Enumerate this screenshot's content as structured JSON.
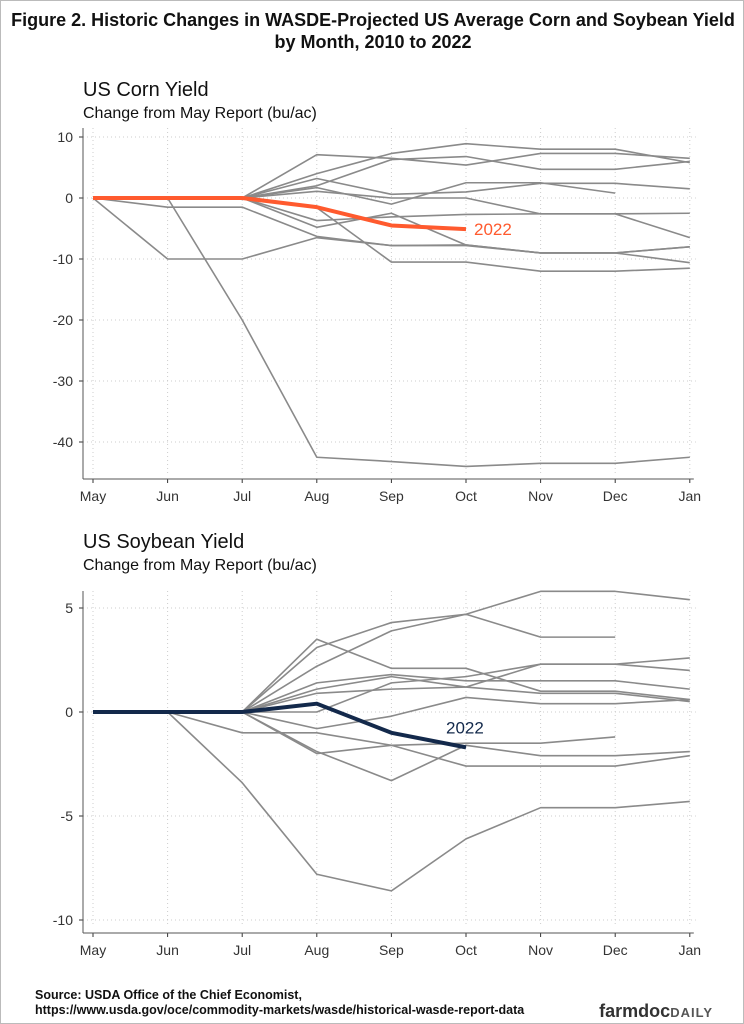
{
  "title": "Figure 2. Historic Changes in WASDE-Projected US Average Corn and Soybean Yield by Month, 2010 to 2022",
  "source_line1": "Source: USDA Office of the Chief Economist,",
  "source_line2": "https://www.usda.gov/oce/commodity-markets/wasde/historical-wasde-report-data",
  "logo": "farmdocDAILY",
  "chart_data": [
    {
      "type": "line",
      "title": "US Corn Yield",
      "subtitle": "Change from May Report (bu/ac)",
      "categories": [
        "May",
        "Jun",
        "Jul",
        "Aug",
        "Sep",
        "Oct",
        "Nov",
        "Dec",
        "Jan"
      ],
      "yticks": [
        10,
        0,
        -10,
        -20,
        -30,
        -40
      ],
      "ylim": [
        -44,
        10
      ],
      "grid": true,
      "highlight_color": "#ff5a2e",
      "history_color": "#8a8a8a",
      "series": [
        {
          "values": [
            0,
            0,
            0,
            7.1,
            6.5,
            5.4,
            7.3,
            7.3,
            6.5
          ]
        },
        {
          "values": [
            0,
            0,
            0,
            4.0,
            7.3,
            8.9,
            8.0,
            8.0,
            5.8
          ]
        },
        {
          "values": [
            0,
            0,
            0,
            2.0,
            6.3,
            6.8,
            4.7,
            4.7,
            6.0
          ]
        },
        {
          "values": [
            0,
            0,
            0,
            1.7,
            -1.0,
            2.5,
            2.5,
            0.8,
            null
          ]
        },
        {
          "values": [
            0,
            0,
            0,
            3.2,
            0.6,
            1.0,
            2.4,
            2.4,
            1.5
          ]
        },
        {
          "values": [
            0,
            0,
            0,
            1.1,
            0,
            0,
            -2.6,
            -2.6,
            -6.5
          ]
        },
        {
          "values": [
            0,
            0,
            0,
            -3.7,
            -3.1,
            -2.7,
            -2.6,
            -2.6,
            -2.5
          ]
        },
        {
          "values": [
            0,
            0,
            0,
            -4.8,
            -2.5,
            -7.7,
            -9.0,
            -9.0,
            -10.6
          ]
        },
        {
          "values": [
            0,
            -1.5,
            -1.5,
            -6.3,
            -7.8,
            -7.7,
            -9.0,
            -9.0,
            -8.0
          ]
        },
        {
          "values": [
            0,
            0,
            0,
            -1.6,
            -10.5,
            -10.5,
            -12.0,
            -12.0,
            -11.5
          ]
        },
        {
          "values": [
            0,
            -10,
            -10,
            -6.5,
            -7.8,
            -7.8,
            -9.0,
            -9.0,
            -8.0
          ]
        },
        {
          "values": [
            0,
            0,
            -20,
            -42.5,
            -43.2,
            -44,
            -43.5,
            -43.5,
            -42.5
          ]
        },
        {
          "name": "2022",
          "highlight": true,
          "values": [
            0,
            0,
            0,
            -1.5,
            -4.5,
            -5.1,
            null,
            null,
            null
          ]
        }
      ]
    },
    {
      "type": "line",
      "title": "US Soybean Yield",
      "subtitle": "Change from May Report (bu/ac)",
      "categories": [
        "May",
        "Jun",
        "Jul",
        "Aug",
        "Sep",
        "Oct",
        "Nov",
        "Dec",
        "Jan"
      ],
      "yticks": [
        5,
        0,
        -5,
        -10
      ],
      "ylim": [
        -10.3,
        6.2
      ],
      "grid": true,
      "highlight_color": "#13294b",
      "history_color": "#8a8a8a",
      "series": [
        {
          "values": [
            0,
            0,
            0,
            3.1,
            4.3,
            4.7,
            5.8,
            5.8,
            5.4
          ]
        },
        {
          "values": [
            0,
            0,
            0,
            3.5,
            2.1,
            2.1,
            1.0,
            1.0,
            0.6
          ]
        },
        {
          "values": [
            0,
            0,
            0,
            2.2,
            3.9,
            4.7,
            3.6,
            3.6,
            null
          ]
        },
        {
          "values": [
            0,
            0,
            0,
            1.4,
            1.8,
            1.5,
            1.5,
            1.5,
            1.1
          ]
        },
        {
          "values": [
            0,
            0,
            0,
            1.1,
            1.7,
            1.2,
            0.9,
            0.9,
            0.5
          ]
        },
        {
          "values": [
            0,
            0,
            0,
            0.9,
            1.1,
            1.2,
            2.3,
            2.3,
            2.6
          ]
        },
        {
          "values": [
            0,
            0,
            0,
            0.0,
            1.4,
            1.7,
            2.3,
            2.3,
            2.0
          ]
        },
        {
          "values": [
            0,
            0,
            0,
            -0.8,
            -0.2,
            0.7,
            0.4,
            0.4,
            0.6
          ]
        },
        {
          "values": [
            0,
            0,
            -1.0,
            -1.0,
            -1.6,
            -2.6,
            -2.6,
            -2.6,
            -2.1
          ]
        },
        {
          "values": [
            0,
            0,
            0,
            -2.0,
            -1.6,
            -1.5,
            -1.5,
            -1.2,
            null
          ]
        },
        {
          "values": [
            0,
            0,
            0,
            -1.9,
            -3.3,
            -1.6,
            -2.1,
            -2.1,
            -1.9
          ]
        },
        {
          "values": [
            0,
            0,
            -3.4,
            -7.8,
            -8.6,
            -6.1,
            -4.6,
            -4.6,
            -4.3
          ]
        },
        {
          "name": "2022",
          "highlight": true,
          "values": [
            0,
            0,
            0,
            0.4,
            -1.0,
            -1.7,
            null,
            null,
            null
          ]
        }
      ]
    }
  ]
}
